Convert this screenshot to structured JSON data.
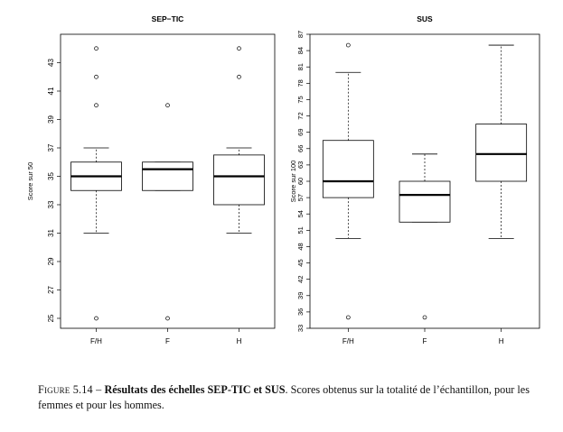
{
  "chart_data": [
    {
      "type": "box",
      "title": "SEP−TIC",
      "ylabel": "Score sur 50",
      "ylim": [
        24.3,
        45
      ],
      "yticks": [
        "25",
        "27",
        "29",
        "31",
        "33",
        "35",
        "37",
        "39",
        "41",
        "43"
      ],
      "categories": [
        "F/H",
        "F",
        "H"
      ],
      "boxes": [
        {
          "whisker_low": 31,
          "q1": 34,
          "median": 35,
          "q3": 36,
          "whisker_high": 37,
          "outliers": [
            25,
            40,
            42,
            44
          ]
        },
        {
          "whisker_low": 34,
          "q1": 34,
          "median": 35.5,
          "q3": 36,
          "whisker_high": 36,
          "outliers": [
            25,
            40
          ]
        },
        {
          "whisker_low": 31,
          "q1": 33,
          "median": 35,
          "q3": 36.5,
          "whisker_high": 37,
          "outliers": [
            42,
            44
          ]
        }
      ]
    },
    {
      "type": "box",
      "title": "SUS",
      "ylabel": "Score sur 100",
      "ylim": [
        33,
        87
      ],
      "yticks": [
        "33",
        "36",
        "39",
        "42",
        "45",
        "48",
        "51",
        "54",
        "57",
        "60",
        "63",
        "66",
        "69",
        "72",
        "75",
        "78",
        "81",
        "84",
        "87"
      ],
      "categories": [
        "F/H",
        "F",
        "H"
      ],
      "boxes": [
        {
          "whisker_low": 49.5,
          "q1": 57,
          "median": 60,
          "q3": 67.5,
          "whisker_high": 80,
          "outliers": [
            35,
            85
          ]
        },
        {
          "whisker_low": 52.5,
          "q1": 52.5,
          "median": 57.5,
          "q3": 60,
          "whisker_high": 65,
          "outliers": [
            35
          ]
        },
        {
          "whisker_low": 49.5,
          "q1": 60,
          "median": 65,
          "q3": 70.5,
          "whisker_high": 85,
          "outliers": []
        }
      ]
    }
  ],
  "caption": {
    "figure_label": "Figure 5.14 –",
    "title": "Résultats des échelles SEP-TIC et SUS",
    "text": ". Scores obtenus sur la totalité de l’échantillon, pour les femmes et pour les hommes."
  }
}
